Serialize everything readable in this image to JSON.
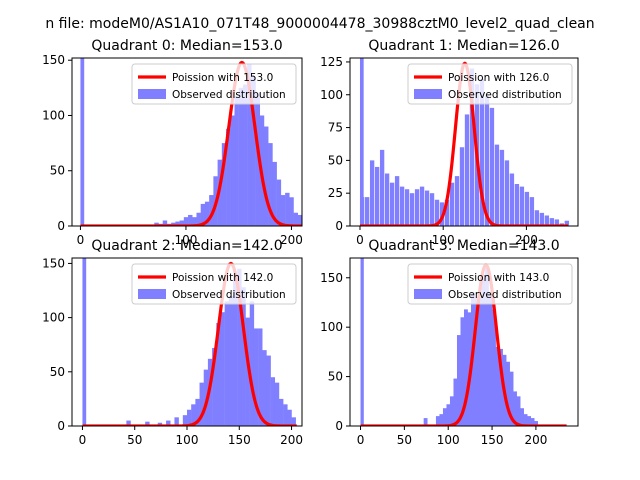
{
  "figure": {
    "suptitle": "n file: modeM0/AS1A10_071T48_9000004478_30988cztM0_level2_quad_clean"
  },
  "colors": {
    "hist": "#7f7fff",
    "curve": "#ff0000",
    "axis": "#000000"
  },
  "chart_data": [
    {
      "type": "bar",
      "title": "Quadrant 0: Median=153.0",
      "xlim": [
        -8,
        210
      ],
      "ylim": [
        0,
        152
      ],
      "xticks": [
        0,
        100,
        200
      ],
      "yticks": [
        0,
        50,
        100,
        150
      ],
      "bin_width": 4.2,
      "legend": {
        "location": "top-right",
        "curve_label": "Poission with 153.0",
        "hist_label": "Observed distribution"
      },
      "poisson_mean": 153.0,
      "curve_peak": 148,
      "curve_x_range": [
        0,
        225
      ],
      "bins": [
        [
          0,
          0
        ],
        [
          70,
          3
        ],
        [
          74,
          2
        ],
        [
          78,
          5
        ],
        [
          82,
          2
        ],
        [
          86,
          3
        ],
        [
          90,
          4
        ],
        [
          94,
          5
        ],
        [
          98,
          8
        ],
        [
          102,
          10
        ],
        [
          106,
          8
        ],
        [
          110,
          12
        ],
        [
          114,
          20
        ],
        [
          118,
          22
        ],
        [
          122,
          28
        ],
        [
          126,
          45
        ],
        [
          130,
          60
        ],
        [
          134,
          75
        ],
        [
          138,
          88
        ],
        [
          142,
          100
        ],
        [
          146,
          118
        ],
        [
          150,
          125
        ],
        [
          154,
          128
        ],
        [
          158,
          147
        ],
        [
          162,
          135
        ],
        [
          166,
          120
        ],
        [
          170,
          100
        ],
        [
          174,
          90
        ],
        [
          178,
          75
        ],
        [
          182,
          58
        ],
        [
          186,
          42
        ],
        [
          190,
          28
        ],
        [
          194,
          30
        ],
        [
          198,
          26
        ],
        [
          202,
          12
        ],
        [
          206,
          10
        ],
        [
          210,
          4
        ],
        [
          214,
          2
        ]
      ],
      "spike": {
        "x": 0,
        "value": 152
      }
    },
    {
      "type": "bar",
      "title": "Quadrant 1: Median=126.0",
      "xlim": [
        -12,
        262
      ],
      "ylim": [
        0,
        128
      ],
      "xticks": [
        0,
        100,
        200
      ],
      "yticks": [
        0,
        25,
        50,
        75,
        100,
        125
      ],
      "bin_width": 5.2,
      "legend": {
        "location": "top-right",
        "curve_label": "Poission with 126.0",
        "hist_label": "Observed distribution"
      },
      "poisson_mean": 126.0,
      "curve_peak": 124,
      "curve_x_range": [
        0,
        250
      ],
      "bins": [
        [
          0,
          22
        ],
        [
          6,
          22
        ],
        [
          12,
          50
        ],
        [
          18,
          45
        ],
        [
          24,
          58
        ],
        [
          30,
          40
        ],
        [
          36,
          33
        ],
        [
          42,
          38
        ],
        [
          48,
          30
        ],
        [
          54,
          28
        ],
        [
          60,
          25
        ],
        [
          66,
          28
        ],
        [
          72,
          30
        ],
        [
          78,
          27
        ],
        [
          84,
          25
        ],
        [
          90,
          20
        ],
        [
          96,
          18
        ],
        [
          102,
          20
        ],
        [
          108,
          33
        ],
        [
          114,
          38
        ],
        [
          120,
          60
        ],
        [
          126,
          85
        ],
        [
          132,
          120
        ],
        [
          138,
          108
        ],
        [
          144,
          112
        ],
        [
          150,
          100
        ],
        [
          156,
          90
        ],
        [
          162,
          62
        ],
        [
          168,
          58
        ],
        [
          174,
          50
        ],
        [
          180,
          40
        ],
        [
          186,
          32
        ],
        [
          192,
          30
        ],
        [
          198,
          26
        ],
        [
          204,
          22
        ],
        [
          210,
          12
        ],
        [
          216,
          10
        ],
        [
          222,
          8
        ],
        [
          228,
          6
        ],
        [
          234,
          5
        ],
        [
          240,
          2
        ],
        [
          246,
          4
        ]
      ],
      "spike": {
        "x": 0,
        "value": 128
      }
    },
    {
      "type": "bar",
      "title": "Quadrant 2: Median=142.0",
      "xlim": [
        -10,
        210
      ],
      "ylim": [
        0,
        155
      ],
      "xticks": [
        0,
        50,
        100,
        150,
        200
      ],
      "yticks": [
        0,
        50,
        100,
        150
      ],
      "bin_width": 4.2,
      "legend": {
        "location": "top-right",
        "curve_label": "Poission with 142.0",
        "hist_label": "Observed distribution"
      },
      "poisson_mean": 142.0,
      "curve_peak": 150,
      "curve_x_range": [
        0,
        205
      ],
      "bins": [
        [
          42,
          5
        ],
        [
          60,
          4
        ],
        [
          72,
          3
        ],
        [
          80,
          5
        ],
        [
          88,
          8
        ],
        [
          96,
          10
        ],
        [
          100,
          15
        ],
        [
          104,
          20
        ],
        [
          108,
          25
        ],
        [
          112,
          40
        ],
        [
          116,
          52
        ],
        [
          120,
          62
        ],
        [
          124,
          72
        ],
        [
          128,
          95
        ],
        [
          132,
          105
        ],
        [
          136,
          115
        ],
        [
          140,
          120
        ],
        [
          144,
          140
        ],
        [
          148,
          145
        ],
        [
          152,
          128
        ],
        [
          156,
          100
        ],
        [
          160,
          115
        ],
        [
          164,
          90
        ],
        [
          168,
          90
        ],
        [
          172,
          70
        ],
        [
          176,
          65
        ],
        [
          180,
          45
        ],
        [
          184,
          40
        ],
        [
          188,
          25
        ],
        [
          192,
          20
        ],
        [
          196,
          15
        ],
        [
          200,
          8
        ]
      ],
      "spike": {
        "x": 0,
        "value": 155
      }
    },
    {
      "type": "bar",
      "title": "Quadrant 3: Median=143.0",
      "xlim": [
        -12,
        248
      ],
      "ylim": [
        0,
        170
      ],
      "xticks": [
        0,
        50,
        100,
        150,
        200
      ],
      "yticks": [
        0,
        50,
        100,
        150
      ],
      "bin_width": 4.4,
      "legend": {
        "location": "top-right",
        "curve_label": "Poission with 143.0",
        "hist_label": "Observed distribution"
      },
      "poisson_mean": 143.0,
      "curve_peak": 163,
      "curve_x_range": [
        0,
        235
      ],
      "bins": [
        [
          72,
          8
        ],
        [
          86,
          10
        ],
        [
          90,
          12
        ],
        [
          94,
          18
        ],
        [
          98,
          22
        ],
        [
          102,
          30
        ],
        [
          106,
          48
        ],
        [
          110,
          92
        ],
        [
          114,
          110
        ],
        [
          118,
          118
        ],
        [
          122,
          115
        ],
        [
          126,
          135
        ],
        [
          130,
          130
        ],
        [
          134,
          130
        ],
        [
          138,
          150
        ],
        [
          142,
          160
        ],
        [
          146,
          135
        ],
        [
          150,
          118
        ],
        [
          154,
          80
        ],
        [
          158,
          78
        ],
        [
          162,
          72
        ],
        [
          166,
          65
        ],
        [
          170,
          55
        ],
        [
          174,
          35
        ],
        [
          178,
          30
        ],
        [
          182,
          18
        ],
        [
          186,
          12
        ],
        [
          190,
          10
        ],
        [
          194,
          8
        ],
        [
          198,
          5
        ]
      ],
      "spike": {
        "x": 0,
        "value": 170
      }
    }
  ]
}
